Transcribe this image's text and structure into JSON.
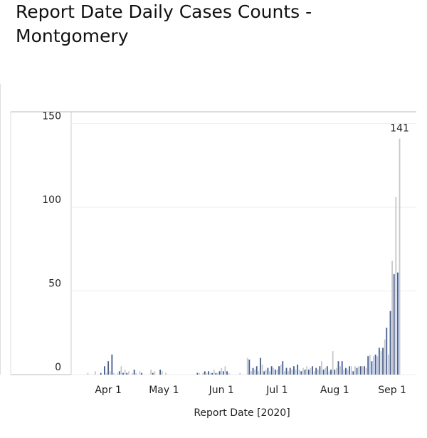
{
  "chart_data": {
    "type": "bar",
    "title": "Report Date Daily Cases Counts - Montgomery",
    "x_label": "Report Date [2020]",
    "x": [
      "2020-03-19",
      "2020-03-20",
      "2020-03-21",
      "2020-03-22",
      "2020-03-23",
      "2020-03-24",
      "2020-03-25",
      "2020-03-26",
      "2020-03-27",
      "2020-03-28",
      "2020-03-29",
      "2020-03-30",
      "2020-03-31",
      "2020-04-01",
      "2020-04-02",
      "2020-04-03",
      "2020-04-04",
      "2020-04-05",
      "2020-04-06",
      "2020-04-07",
      "2020-04-08",
      "2020-04-09",
      "2020-04-10",
      "2020-04-11",
      "2020-04-12",
      "2020-04-13",
      "2020-04-14",
      "2020-04-15",
      "2020-04-16",
      "2020-04-17",
      "2020-04-18",
      "2020-04-19",
      "2020-04-20",
      "2020-04-21",
      "2020-04-22",
      "2020-04-23",
      "2020-04-24",
      "2020-04-25",
      "2020-04-26",
      "2020-04-27",
      "2020-04-28",
      "2020-04-29",
      "2020-04-30",
      "2020-05-01",
      "2020-05-02",
      "2020-05-03",
      "2020-05-04",
      "2020-05-05",
      "2020-05-06",
      "2020-05-07",
      "2020-05-08",
      "2020-05-09",
      "2020-05-10",
      "2020-05-11",
      "2020-05-12",
      "2020-05-13",
      "2020-05-14",
      "2020-05-15",
      "2020-05-16",
      "2020-05-17",
      "2020-05-18",
      "2020-05-19",
      "2020-05-20",
      "2020-05-21",
      "2020-05-22",
      "2020-05-23",
      "2020-05-24",
      "2020-05-25",
      "2020-05-26",
      "2020-05-27",
      "2020-05-28",
      "2020-05-29",
      "2020-05-30",
      "2020-05-31",
      "2020-06-01",
      "2020-06-02",
      "2020-06-03",
      "2020-06-04",
      "2020-06-05",
      "2020-06-06",
      "2020-06-07",
      "2020-06-08",
      "2020-06-09",
      "2020-06-10",
      "2020-06-11",
      "2020-06-12",
      "2020-06-13",
      "2020-06-14",
      "2020-06-15",
      "2020-06-16",
      "2020-06-17",
      "2020-06-18",
      "2020-06-19",
      "2020-06-20",
      "2020-06-21",
      "2020-06-22",
      "2020-06-23",
      "2020-06-24",
      "2020-06-25",
      "2020-06-26",
      "2020-06-27",
      "2020-06-28",
      "2020-06-29",
      "2020-06-30",
      "2020-07-01",
      "2020-07-02",
      "2020-07-03",
      "2020-07-04",
      "2020-07-05",
      "2020-07-06",
      "2020-07-07",
      "2020-07-08",
      "2020-07-09",
      "2020-07-10",
      "2020-07-11",
      "2020-07-12",
      "2020-07-13",
      "2020-07-14",
      "2020-07-15",
      "2020-07-16",
      "2020-07-17",
      "2020-07-18",
      "2020-07-19",
      "2020-07-20",
      "2020-07-21",
      "2020-07-22",
      "2020-07-23",
      "2020-07-24",
      "2020-07-25",
      "2020-07-26",
      "2020-07-27",
      "2020-07-28",
      "2020-07-29",
      "2020-07-30",
      "2020-07-31",
      "2020-08-01",
      "2020-08-02",
      "2020-08-03",
      "2020-08-04",
      "2020-08-05",
      "2020-08-06",
      "2020-08-07",
      "2020-08-08",
      "2020-08-09",
      "2020-08-10",
      "2020-08-11",
      "2020-08-12",
      "2020-08-13",
      "2020-08-14",
      "2020-08-15",
      "2020-08-16",
      "2020-08-17",
      "2020-08-18",
      "2020-08-19",
      "2020-08-20",
      "2020-08-21",
      "2020-08-22",
      "2020-08-23",
      "2020-08-24",
      "2020-08-25",
      "2020-08-26",
      "2020-08-27",
      "2020-08-28",
      "2020-08-29",
      "2020-08-30",
      "2020-08-31",
      "2020-09-01",
      "2020-09-02",
      "2020-09-03",
      "2020-09-04",
      "2020-09-05"
    ],
    "values": [
      0,
      0,
      1,
      0,
      0,
      0,
      2,
      0,
      0,
      1,
      0,
      5,
      1,
      8,
      2,
      12,
      1,
      0,
      1,
      2,
      5,
      1,
      3,
      1,
      2,
      0,
      1,
      3,
      1,
      0,
      2,
      1,
      0,
      0,
      0,
      0,
      3,
      1,
      2,
      0,
      0,
      3,
      2,
      0,
      1,
      0,
      0,
      0,
      0,
      0,
      0,
      0,
      0,
      0,
      0,
      0,
      0,
      0,
      0,
      0,
      0,
      1,
      1,
      0,
      1,
      2,
      1,
      2,
      1,
      1,
      3,
      1,
      1,
      2,
      4,
      2,
      5,
      2,
      1,
      0,
      0,
      0,
      0,
      0,
      1,
      0,
      0,
      0,
      10,
      9,
      2,
      4,
      3,
      5,
      2,
      10,
      6,
      2,
      3,
      4,
      2,
      5,
      4,
      3,
      3,
      5,
      6,
      8,
      2,
      4,
      2,
      4,
      3,
      5,
      3,
      6,
      3,
      2,
      4,
      3,
      5,
      3,
      4,
      5,
      2,
      4,
      3,
      5,
      8,
      3,
      4,
      5,
      2,
      3,
      14,
      3,
      4,
      8,
      5,
      8,
      3,
      4,
      3,
      5,
      5,
      2,
      5,
      4,
      5,
      5,
      5,
      5,
      4,
      11,
      12,
      8,
      11,
      12,
      11,
      16,
      14,
      16,
      21,
      28,
      12,
      38,
      68,
      60,
      106,
      61,
      141
    ],
    "colors": [
      "#c8c8c8",
      "#3f5f9f"
    ],
    "xlim": [
      "2020-03-12",
      "2020-09-14"
    ],
    "xticks": [
      {
        "value": "2020-04-01",
        "label": "Apr 1"
      },
      {
        "value": "2020-05-01",
        "label": "May 1"
      },
      {
        "value": "2020-06-01",
        "label": "Jun 1"
      },
      {
        "value": "2020-07-01",
        "label": "Jul 1"
      },
      {
        "value": "2020-08-01",
        "label": "Aug 1"
      },
      {
        "value": "2020-09-01",
        "label": "Sep 1"
      }
    ],
    "ylim": [
      0,
      157
    ],
    "yticks": [
      0,
      50,
      100,
      150
    ],
    "grid": true
  }
}
